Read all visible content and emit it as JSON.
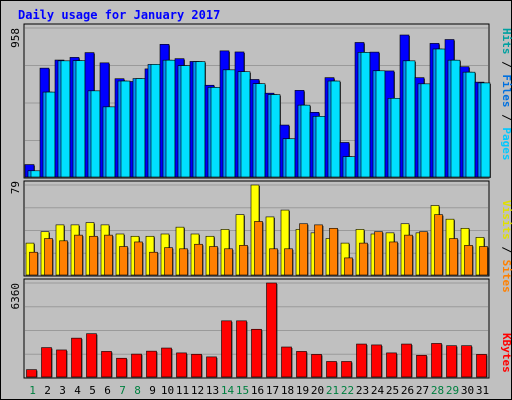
{
  "chart_data": [
    {
      "type": "bar",
      "title": "Daily usage for January 2017",
      "categories": [
        "1",
        "2",
        "3",
        "4",
        "5",
        "6",
        "7",
        "8",
        "9",
        "10",
        "11",
        "12",
        "13",
        "14",
        "15",
        "16",
        "17",
        "18",
        "19",
        "20",
        "21",
        "22",
        "23",
        "24",
        "25",
        "26",
        "27",
        "28",
        "29",
        "30",
        "31"
      ],
      "weekend_days": [
        "1",
        "7",
        "8",
        "14",
        "15",
        "21",
        "22",
        "28",
        "29"
      ],
      "y_max_label": "958",
      "ylim": [
        0,
        958
      ],
      "grid": true,
      "legend": [
        "Pages",
        "Files",
        "Hits"
      ],
      "colors": {
        "Hits": "#0000ff",
        "Files": "#0090ff",
        "Pages": "#00e0ff"
      },
      "series": [
        {
          "name": "Hits",
          "values": [
            80,
            700,
            752,
            769,
            800,
            734,
            632,
            614,
            695,
            853,
            761,
            743,
            590,
            811,
            804,
            627,
            539,
            334,
            557,
            416,
            639,
            222,
            865,
            803,
            682,
            913,
            639,
            859,
            884,
            709,
            610
          ]
        },
        {
          "name": "Files",
          "values": [
            40,
            546,
            747,
            748,
            554,
            451,
            617,
            633,
            724,
            751,
            716,
            742,
            576,
            689,
            677,
            600,
            530,
            246,
            462,
            390,
            617,
            131,
            801,
            683,
            506,
            747,
            599,
            823,
            751,
            674,
            605
          ]
        },
        {
          "name": "Pages",
          "values": [
            40,
            546,
            747,
            748,
            554,
            451,
            617,
            633,
            724,
            751,
            716,
            742,
            576,
            689,
            677,
            600,
            530,
            246,
            462,
            390,
            617,
            131,
            801,
            683,
            506,
            747,
            599,
            823,
            751,
            674,
            605
          ]
        }
      ]
    },
    {
      "type": "bar",
      "y_max_label": "79",
      "ylim": [
        0,
        79
      ],
      "grid": true,
      "legend": [
        "Sites",
        "Visits"
      ],
      "colors": {
        "Visits": "#ffff00",
        "Sites": "#ff8000"
      },
      "series": [
        {
          "name": "Visits",
          "values": [
            28,
            38,
            44,
            44,
            46,
            44,
            36,
            34,
            34,
            36,
            42,
            36,
            34,
            40,
            53,
            79,
            51,
            57,
            40,
            37,
            32,
            28,
            40,
            36,
            37,
            45,
            37,
            61,
            49,
            41,
            33
          ]
        },
        {
          "name": "Sites",
          "values": [
            20,
            32,
            30,
            35,
            34,
            35,
            25,
            29,
            20,
            24,
            23,
            27,
            25,
            23,
            26,
            47,
            23,
            23,
            45,
            44,
            41,
            15,
            28,
            38,
            29,
            35,
            38,
            53,
            32,
            26,
            25
          ]
        }
      ]
    },
    {
      "type": "bar",
      "y_max_label": "6360",
      "ylim": [
        0,
        6360
      ],
      "grid": true,
      "legend": [
        "KBytes"
      ],
      "colors": {
        "KBytes": "#ff0000"
      },
      "series": [
        {
          "name": "KBytes",
          "values": [
            500,
            1990,
            1830,
            2630,
            2930,
            1730,
            1270,
            1550,
            1750,
            1960,
            1630,
            1540,
            1360,
            3800,
            3800,
            3230,
            6360,
            2030,
            1730,
            1530,
            1050,
            1050,
            2230,
            2170,
            1630,
            2230,
            1470,
            2270,
            2120,
            2120,
            1530
          ]
        }
      ]
    }
  ]
}
